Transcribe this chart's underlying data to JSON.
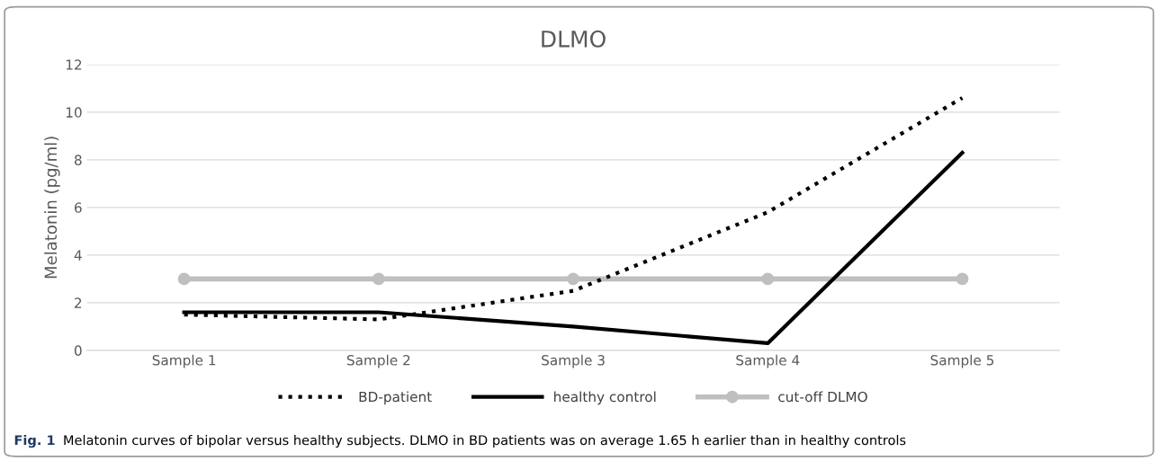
{
  "chart_data": {
    "type": "line",
    "title": "DLMO",
    "ylabel": "Melatonin (pg/ml)",
    "categories": [
      "Sample 1",
      "Sample 2",
      "Sample 3",
      "Sample 4",
      "Sample 5"
    ],
    "series": [
      {
        "name": "BD-patient",
        "color": "#000000",
        "values": [
          1.5,
          1.3,
          2.5,
          5.8,
          10.6
        ],
        "line_style": "dotted",
        "marker": "none"
      },
      {
        "name": "healthy control",
        "color": "#000000",
        "values": [
          1.6,
          1.6,
          1.0,
          0.3,
          8.3
        ],
        "line_style": "solid",
        "marker": "none"
      },
      {
        "name": "cut-off DLMO",
        "color": "#bfbfbf",
        "values": [
          3,
          3,
          3,
          3,
          3
        ],
        "line_style": "solid",
        "marker": "circle"
      }
    ],
    "ylim": [
      0,
      12
    ],
    "yticks": [
      0,
      2,
      4,
      6,
      8,
      10,
      12
    ],
    "grid": "y",
    "legend": "bottom",
    "annotations": [
      "Fig. 1",
      "Melatonin curves of bipolar versus healthy subjects. DLMO in BD patients was on average 1.65 h earlier than in healthy controls"
    ]
  }
}
